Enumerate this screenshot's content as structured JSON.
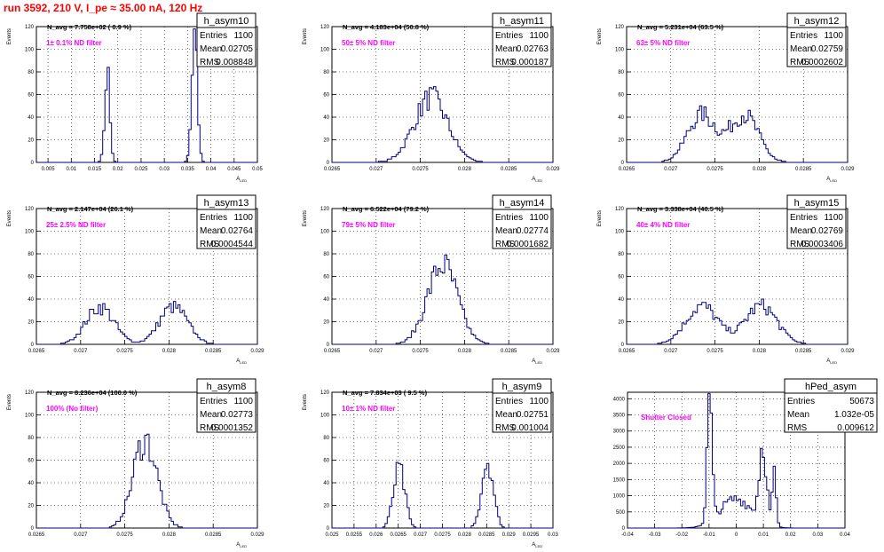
{
  "run_title": "run 3592,   210 V, I_pe ≈ 35.00 nA, 120 Hz",
  "colors": {
    "title": "#ff0000",
    "filter_label": "#ff00ff",
    "histogram": "#000080",
    "grid": "#000000",
    "background": "#ffffff"
  },
  "stat_labels": {
    "entries": "Entries",
    "mean": "Mean",
    "rms": "RMS"
  },
  "chart_data": [
    {
      "type": "histogram",
      "name": "h_asym10",
      "navg": "N_avg = 7.758e+02 ( 0.9 %)",
      "filter": "1± 0.1% ND filter",
      "entries": "1100",
      "mean": "0.02705",
      "rms": "0.008848",
      "ylabel": "Events",
      "xlabel": "A_LED",
      "xlim": [
        0.0025,
        0.05
      ],
      "ylim": [
        0,
        120
      ],
      "grid": true,
      "xticks": [
        0.005,
        0.01,
        0.015,
        0.02,
        0.025,
        0.03,
        0.035,
        0.04,
        0.045,
        0.05
      ],
      "xticklabels": [
        "0.005",
        "0.01",
        "0.015",
        "0.02",
        "0.025",
        "0.03",
        "0.035",
        "0.04",
        "0.045",
        "0.05"
      ],
      "yticks": [
        0,
        20,
        40,
        60,
        80,
        100,
        120
      ],
      "yticklabels": [
        "0",
        "20",
        "40",
        "60",
        "80",
        "100",
        "120"
      ],
      "peaks": [
        {
          "center": 0.01775,
          "sigma": 0.00055,
          "height": 78
        },
        {
          "center": 0.0365,
          "sigma": 0.0006,
          "height": 110
        }
      ]
    },
    {
      "type": "histogram",
      "name": "h_asym11",
      "navg": "N_avg = 4.183e+04 (50.8 %)",
      "filter": "50± 5% ND filter",
      "entries": "1100",
      "mean": "0.02763",
      "rms": "0.000187",
      "ylabel": "Events",
      "xlabel": "A_LED",
      "xlim": [
        0.0265,
        0.029
      ],
      "ylim": [
        0,
        120
      ],
      "grid": true,
      "xticks": [
        0.0265,
        0.027,
        0.0275,
        0.028,
        0.0285,
        0.029
      ],
      "xticklabels": [
        "0.0265",
        "0.027",
        "0.0275",
        "0.028",
        "0.0285",
        "0.029"
      ],
      "yticks": [
        0,
        20,
        40,
        60,
        80,
        100,
        120
      ],
      "yticklabels": [
        "0",
        "20",
        "40",
        "60",
        "80",
        "100",
        "120"
      ],
      "peaks": [
        {
          "center": 0.02762,
          "sigma": 0.00019,
          "height": 57
        }
      ]
    },
    {
      "type": "histogram",
      "name": "h_asym12",
      "navg": "N_avg = 5.231e+04 (63.5 %)",
      "filter": "63± 5% ND filter",
      "entries": "1100",
      "mean": "0.02759",
      "rms": "0.0002602",
      "ylabel": "Events",
      "xlabel": "A_LED",
      "xlim": [
        0.0265,
        0.029
      ],
      "ylim": [
        0,
        120
      ],
      "grid": true,
      "xticks": [
        0.0265,
        0.027,
        0.0275,
        0.028,
        0.0285,
        0.029
      ],
      "xticklabels": [
        "0.0265",
        "0.027",
        "0.0275",
        "0.028",
        "0.0285",
        "0.029"
      ],
      "yticks": [
        0,
        20,
        40,
        60,
        80,
        100,
        120
      ],
      "yticklabels": [
        "0",
        "20",
        "40",
        "60",
        "80",
        "100",
        "120"
      ],
      "peaks": [
        {
          "center": 0.02735,
          "sigma": 0.00016,
          "height": 42
        },
        {
          "center": 0.02783,
          "sigma": 0.00016,
          "height": 42
        }
      ]
    },
    {
      "type": "histogram",
      "name": "h_asym13",
      "navg": "N_avg = 2.147e+04 (26.1 %)",
      "filter": "25± 2.5% ND filter",
      "entries": "1100",
      "mean": "0.02764",
      "rms": "0.0004544",
      "ylabel": "Events",
      "xlabel": "A_LED",
      "xlim": [
        0.0265,
        0.029
      ],
      "ylim": [
        0,
        120
      ],
      "grid": true,
      "xticks": [
        0.0265,
        0.027,
        0.0275,
        0.028,
        0.0285,
        0.029
      ],
      "xticklabels": [
        "0.0265",
        "0.027",
        "0.0275",
        "0.028",
        "0.0285",
        "0.029"
      ],
      "yticks": [
        0,
        20,
        40,
        60,
        80,
        100,
        120
      ],
      "yticklabels": [
        "0",
        "20",
        "40",
        "60",
        "80",
        "100",
        "120"
      ],
      "peaks": [
        {
          "center": 0.02722,
          "sigma": 0.00016,
          "height": 33
        },
        {
          "center": 0.02805,
          "sigma": 0.00016,
          "height": 33
        }
      ]
    },
    {
      "type": "histogram",
      "name": "h_asym14",
      "navg": "N_avg = 6.522e+04 (79.2 %)",
      "filter": "79± 5% ND filter",
      "entries": "1100",
      "mean": "0.02774",
      "rms": "0.0001682",
      "ylabel": "Events",
      "xlabel": "A_LED",
      "xlim": [
        0.0265,
        0.029
      ],
      "ylim": [
        0,
        120
      ],
      "grid": true,
      "xticks": [
        0.0265,
        0.027,
        0.0275,
        0.028,
        0.0285,
        0.029
      ],
      "xticklabels": [
        "0.0265",
        "0.027",
        "0.0275",
        "0.028",
        "0.0285",
        "0.029"
      ],
      "yticks": [
        0,
        20,
        40,
        60,
        80,
        100,
        120
      ],
      "yticklabels": [
        "0",
        "20",
        "40",
        "60",
        "80",
        "100",
        "120"
      ],
      "peaks": [
        {
          "center": 0.02775,
          "sigma": 0.00017,
          "height": 70
        }
      ]
    },
    {
      "type": "histogram",
      "name": "h_asym15",
      "navg": "N_avg = 3.338e+04 (40.5 %)",
      "filter": "40± 4% ND filter",
      "entries": "1100",
      "mean": "0.02769",
      "rms": "0.0003406",
      "ylabel": "Events",
      "xlabel": "A_LED",
      "xlim": [
        0.0265,
        0.029
      ],
      "ylim": [
        0,
        120
      ],
      "grid": true,
      "xticks": [
        0.0265,
        0.027,
        0.0275,
        0.028,
        0.0285,
        0.029
      ],
      "xticklabels": [
        "0.0265",
        "0.027",
        "0.0275",
        "0.028",
        "0.0285",
        "0.029"
      ],
      "yticks": [
        0,
        20,
        40,
        60,
        80,
        100,
        120
      ],
      "yticklabels": [
        "0",
        "20",
        "40",
        "60",
        "80",
        "100",
        "120"
      ],
      "peaks": [
        {
          "center": 0.02735,
          "sigma": 0.00018,
          "height": 34
        },
        {
          "center": 0.02802,
          "sigma": 0.00018,
          "height": 34
        }
      ]
    },
    {
      "type": "histogram",
      "name": "h_asym8",
      "navg": "N_avg = 8.236e+04 (100.0 %)",
      "filter": "100% (No filter)",
      "entries": "1100",
      "mean": "0.02773",
      "rms": "0.0001352",
      "ylabel": "Events",
      "xlabel": "A_LED",
      "xlim": [
        0.0265,
        0.029
      ],
      "ylim": [
        0,
        120
      ],
      "grid": true,
      "xticks": [
        0.0265,
        0.027,
        0.0275,
        0.028,
        0.0285,
        0.029
      ],
      "xticklabels": [
        "0.0265",
        "0.027",
        "0.0275",
        "0.028",
        "0.0285",
        "0.029"
      ],
      "yticks": [
        0,
        20,
        40,
        60,
        80,
        100,
        120
      ],
      "yticklabels": [
        "0",
        "20",
        "40",
        "60",
        "80",
        "100",
        "120"
      ],
      "peaks": [
        {
          "center": 0.02773,
          "sigma": 0.000135,
          "height": 78
        }
      ]
    },
    {
      "type": "histogram",
      "name": "h_asym9",
      "navg": "N_avg = 7.834e+03 ( 9.5 %)",
      "filter": "10± 1% ND filter",
      "entries": "1100",
      "mean": "0.02751",
      "rms": "0.001004",
      "ylabel": "Events",
      "xlabel": "A_LED",
      "xlim": [
        0.025,
        0.03
      ],
      "ylim": [
        0,
        120
      ],
      "grid": true,
      "xticks": [
        0.025,
        0.0255,
        0.026,
        0.0265,
        0.027,
        0.0275,
        0.028,
        0.0285,
        0.029,
        0.0295,
        0.03
      ],
      "xticklabels": [
        "0.025",
        "0.0255",
        "0.026",
        "0.0265",
        "0.027",
        "0.0275",
        "0.028",
        "0.0285",
        "0.029",
        "0.0295",
        "0.03"
      ],
      "yticks": [
        0,
        20,
        40,
        60,
        80,
        100,
        120
      ],
      "yticklabels": [
        "0",
        "20",
        "40",
        "60",
        "80",
        "100",
        "120"
      ],
      "peaks": [
        {
          "center": 0.02652,
          "sigma": 0.00013,
          "height": 52
        },
        {
          "center": 0.02852,
          "sigma": 0.00013,
          "height": 60
        }
      ]
    },
    {
      "type": "histogram",
      "name": "hPed_asym",
      "navg": "",
      "filter": "Shutter Closed",
      "entries": "50673",
      "mean": "1.032e-05",
      "rms": "0.009612",
      "ylabel": "",
      "xlabel": "",
      "xlim": [
        -0.04,
        0.04
      ],
      "ylim": [
        0,
        4200
      ],
      "grid": true,
      "xticks": [
        -0.04,
        -0.03,
        -0.02,
        -0.01,
        0,
        0.01,
        0.02,
        0.03,
        0.04
      ],
      "xticklabels": [
        "-0.04",
        "-0.03",
        "-0.02",
        "-0.01",
        "0",
        "0.01",
        "0.02",
        "0.03",
        "0.04"
      ],
      "yticks": [
        0,
        500,
        1000,
        1500,
        2000,
        2500,
        3000,
        3500,
        4000
      ],
      "yticklabels": [
        "0",
        "500",
        "1000",
        "1500",
        "2000",
        "2500",
        "3000",
        "3500",
        "4000"
      ],
      "peaks": [
        {
          "center": -0.0098,
          "sigma": 0.0009,
          "height": 3800
        },
        {
          "center": 0.0098,
          "sigma": 0.0013,
          "height": 2400
        },
        {
          "center": 0.0,
          "sigma": 0.006,
          "height": 900
        },
        {
          "center": 0.014,
          "sigma": 0.0007,
          "height": 1600
        }
      ]
    }
  ]
}
